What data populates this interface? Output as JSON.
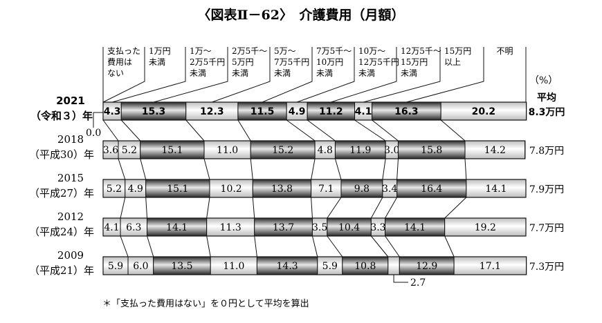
{
  "title": "〈図表Ⅱ－62〉　介護費用（月額）",
  "unit_label": "（%）",
  "avg_header": "平均",
  "footnote": "＊「支払った費用はない」を０円として平均を算出",
  "callouts": {
    "zero": "0.0",
    "small": "2.7"
  },
  "chart_data": {
    "type": "bar",
    "stacked": true,
    "orientation": "horizontal",
    "categories": [
      [
        "支払った",
        "費用は",
        "ない"
      ],
      [
        "1万円",
        "未満"
      ],
      [
        "1万～",
        "2万5千円",
        "未満"
      ],
      [
        "2万5千～",
        "5万円",
        "未満"
      ],
      [
        "5万～",
        "7万5千円",
        "未満"
      ],
      [
        "7万5千～",
        "10万円",
        "未満"
      ],
      [
        "10万～",
        "12万5千円",
        "未満"
      ],
      [
        "12万5千～",
        "15万円",
        "未満"
      ],
      [
        "15万円",
        "以上"
      ],
      [
        "不明"
      ]
    ],
    "series": [
      {
        "year_line1": "2021",
        "year_line2": "（令和３）年",
        "average": "8.3万円",
        "highlight": true,
        "values": [
          0.0,
          4.3,
          15.3,
          12.3,
          11.5,
          4.9,
          11.2,
          4.1,
          16.3,
          20.2
        ]
      },
      {
        "year_line1": "2018",
        "year_line2": "（平成30）年",
        "average": "7.8万円",
        "highlight": false,
        "values": [
          3.6,
          5.2,
          15.1,
          11.0,
          15.2,
          4.8,
          11.9,
          3.0,
          15.8,
          14.2
        ]
      },
      {
        "year_line1": "2015",
        "year_line2": "（平成27）年",
        "average": "7.9万円",
        "highlight": false,
        "values": [
          5.2,
          4.9,
          15.1,
          10.2,
          13.8,
          7.1,
          9.8,
          3.4,
          16.4,
          14.1
        ]
      },
      {
        "year_line1": "2012",
        "year_line2": "（平成24）年",
        "average": "7.7万円",
        "highlight": false,
        "values": [
          4.1,
          6.3,
          14.1,
          11.3,
          13.7,
          3.5,
          10.4,
          3.3,
          14.1,
          19.2
        ]
      },
      {
        "year_line1": "2009",
        "year_line2": "（平成21）年",
        "average": "7.3万円",
        "highlight": false,
        "values": [
          5.9,
          6.0,
          13.5,
          11.0,
          14.3,
          5.9,
          10.8,
          2.7,
          12.9,
          17.1
        ]
      }
    ],
    "xlim": [
      0,
      100
    ],
    "legend": "top",
    "segment_colors": [
      "#ffffff",
      "#ffffff",
      "#5a5a5a",
      "#ffffff",
      "#5a5a5a",
      "#ffffff",
      "#5a5a5a",
      "#ffffff",
      "#5a5a5a",
      "#ffffff"
    ]
  }
}
